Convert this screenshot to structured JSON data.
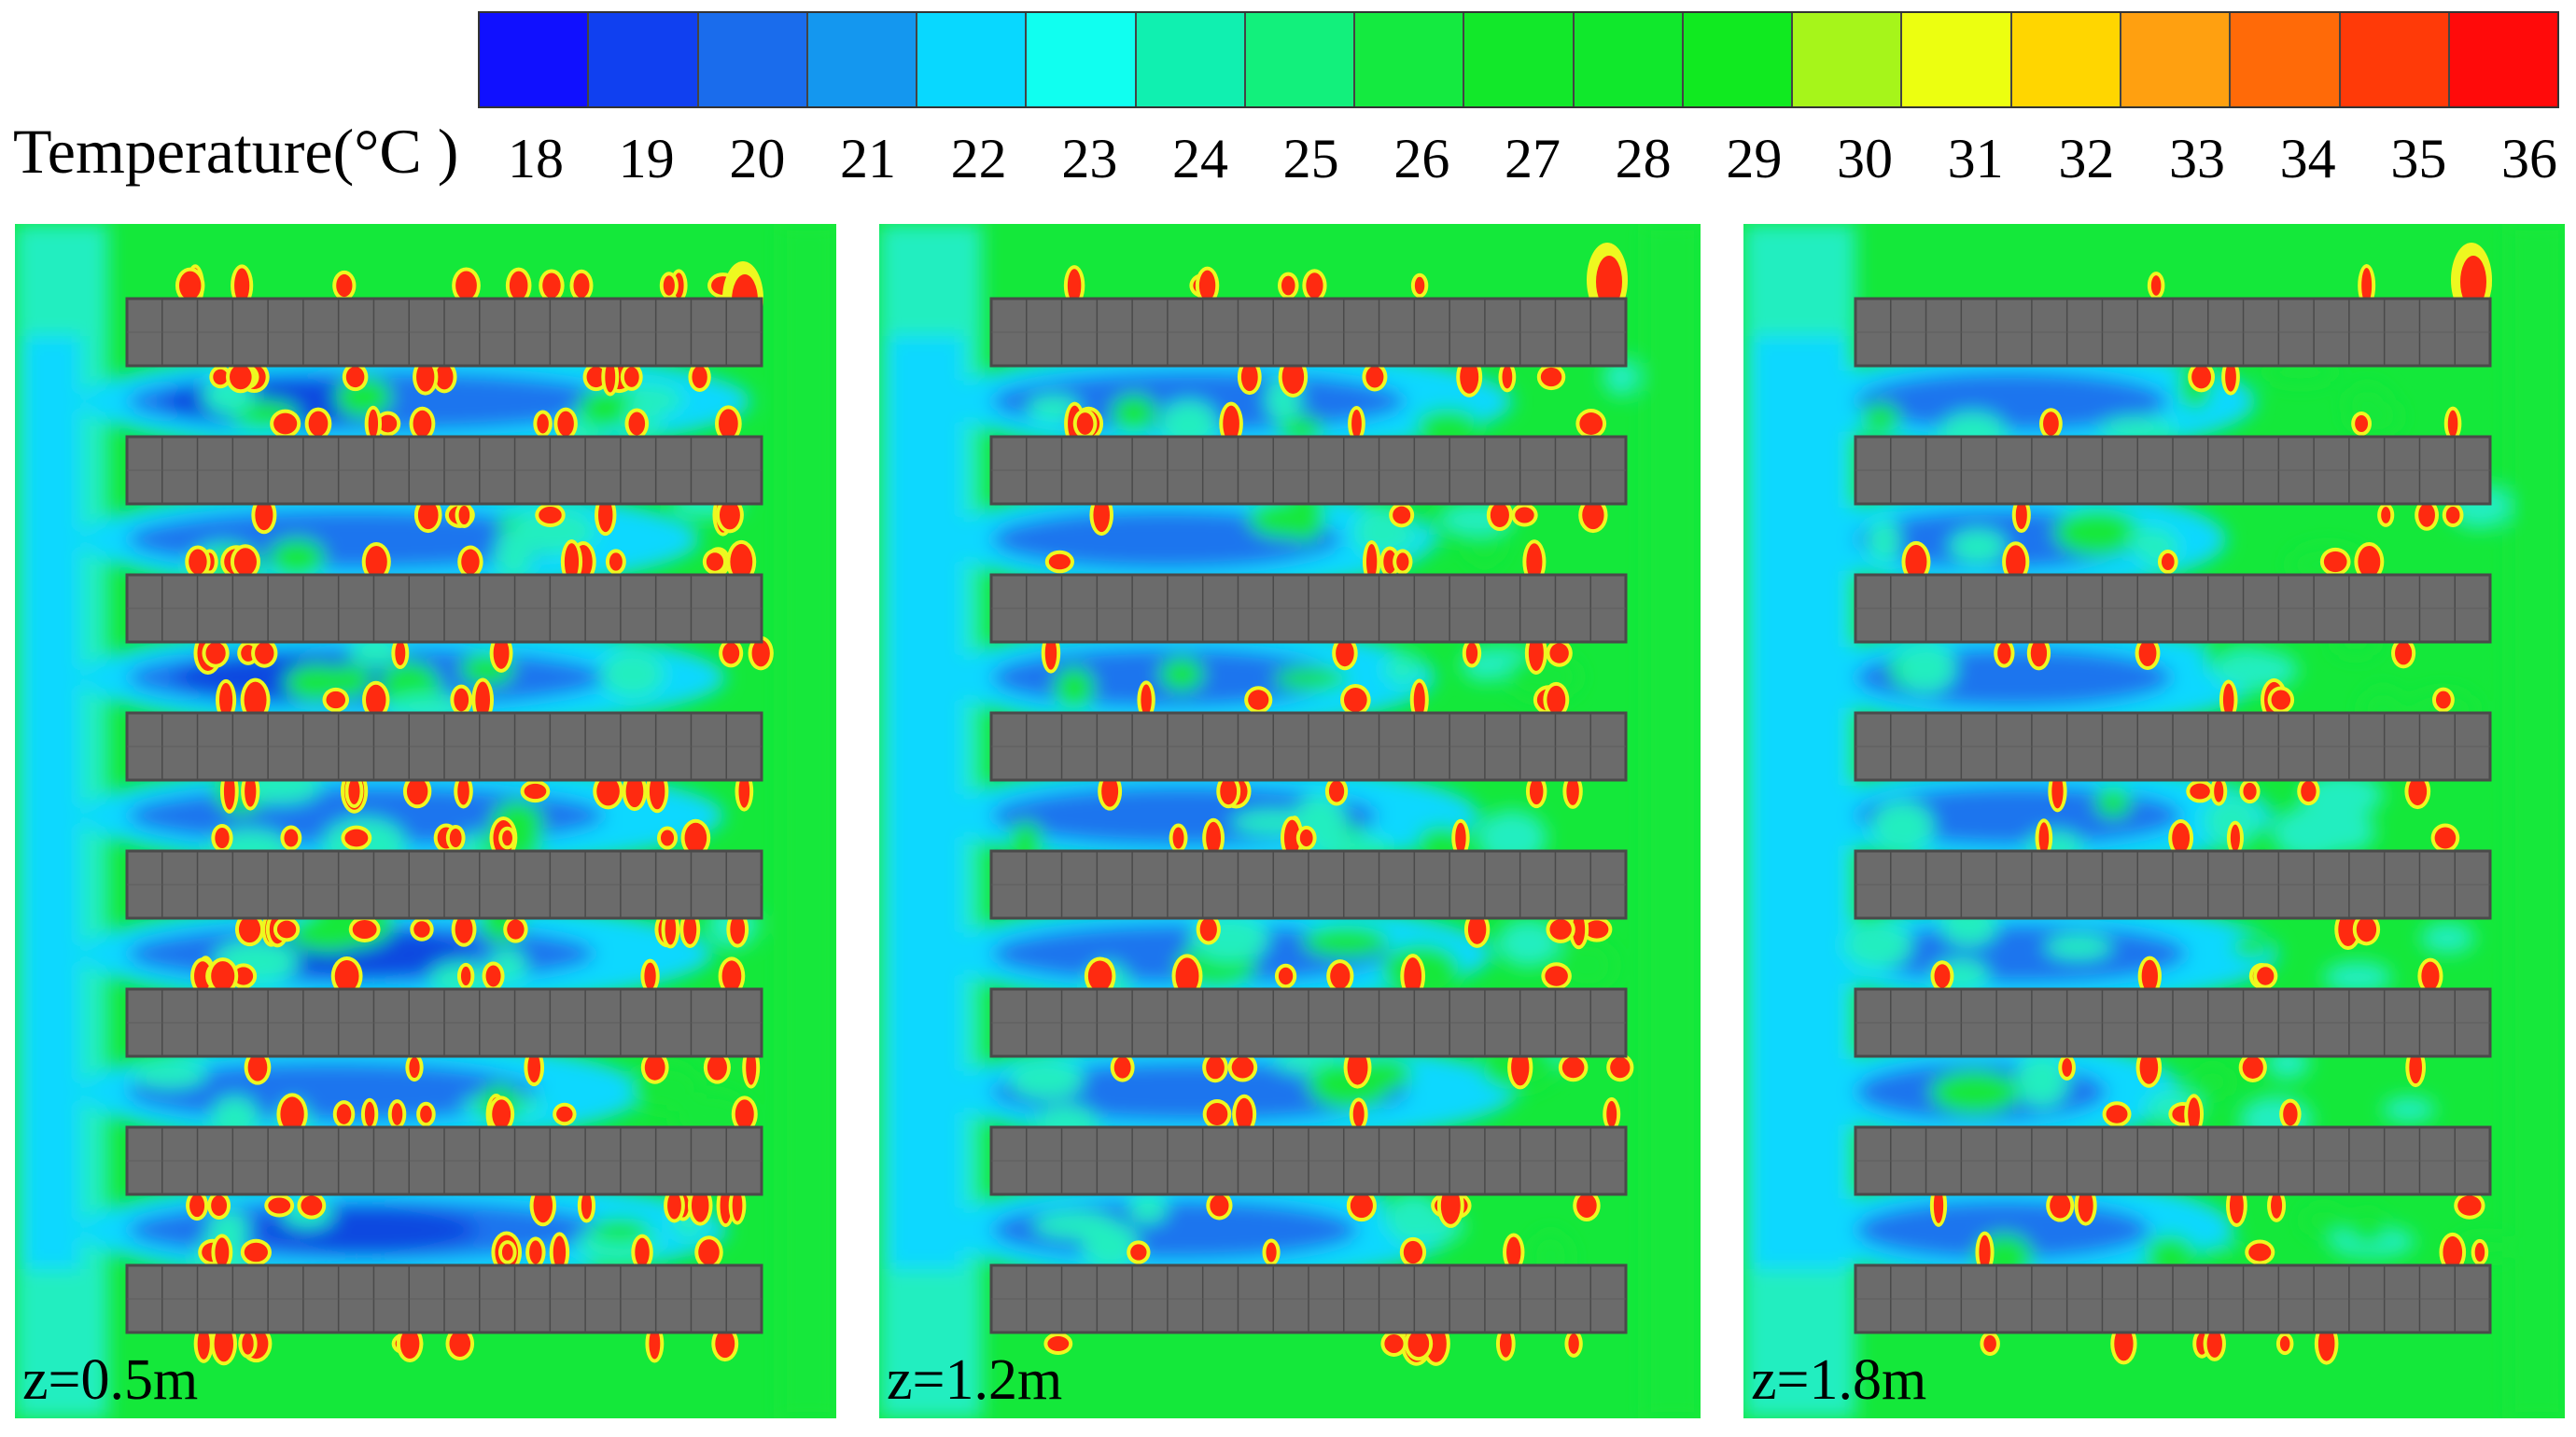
{
  "legend": {
    "title": "Temperature(°C )",
    "ticks": [
      "18",
      "19",
      "20",
      "21",
      "22",
      "23",
      "24",
      "25",
      "26",
      "27",
      "28",
      "29",
      "30",
      "31",
      "32",
      "33",
      "34",
      "35",
      "36"
    ],
    "colors": [
      "#1010ff",
      "#1040f0",
      "#1a6cec",
      "#1497ef",
      "#08d8ff",
      "#10fff0",
      "#10f0b0",
      "#12f07c",
      "#14ea40",
      "#12e82a",
      "#10e82c",
      "#10ea20",
      "#a6f51a",
      "#ecff10",
      "#ffd600",
      "#ffa010",
      "#ff6a08",
      "#ff3a08",
      "#ff0a0a"
    ]
  },
  "panels": [
    {
      "label": "z=0.5m",
      "variant": 0
    },
    {
      "label": "z=1.2m",
      "variant": 1
    },
    {
      "label": "z=1.8m",
      "variant": 2
    }
  ],
  "field_colors": {
    "background": "#14e83a",
    "mid": "#22eec0",
    "cool": "#10d8ff",
    "cold": "#1a74ee",
    "colder": "#0a48e0",
    "hot_edge": "#eef820",
    "hot": "#ff2a10",
    "building": "#6b6b6b",
    "building_edge": "#4a4a4a"
  },
  "layout_counts": {
    "building_rows": 8,
    "building_cells": 18
  }
}
